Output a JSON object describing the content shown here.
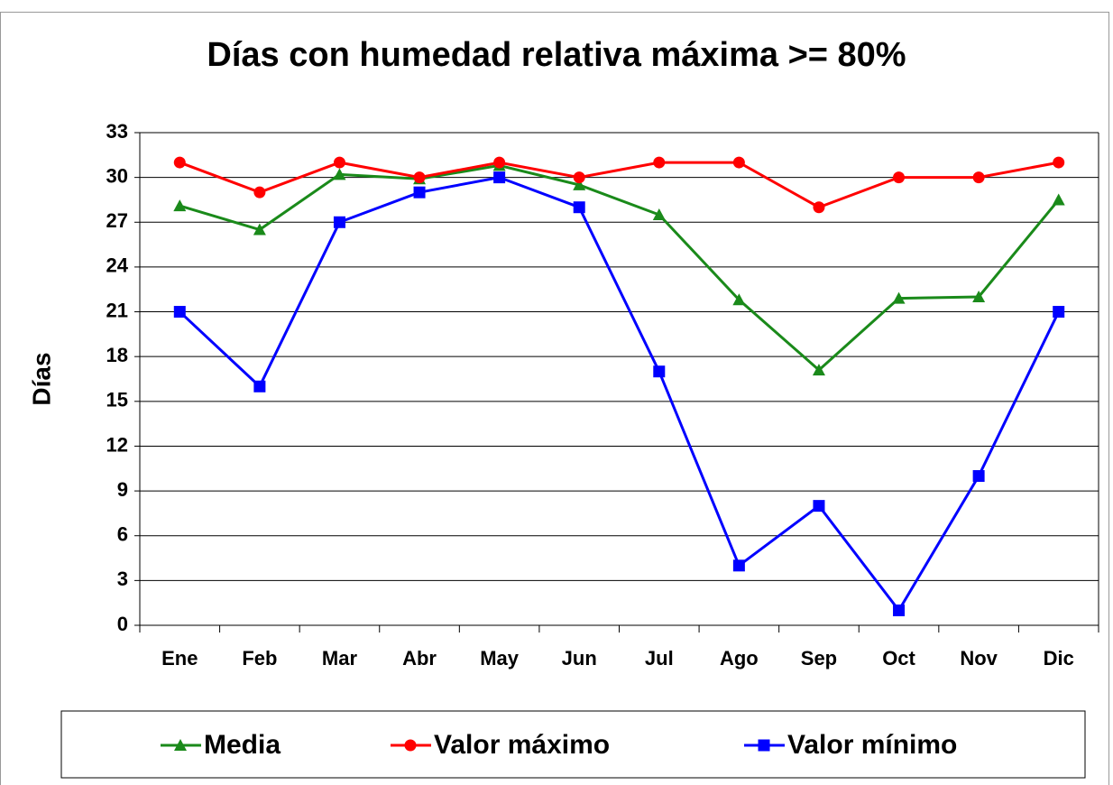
{
  "chart_data": {
    "type": "line",
    "title": "Días con humedad relativa máxima >= 80%",
    "y_label": "Días",
    "categories": [
      "Ene",
      "Feb",
      "Mar",
      "Abr",
      "May",
      "Jun",
      "Jul",
      "Ago",
      "Sep",
      "Oct",
      "Nov",
      "Dic"
    ],
    "series": [
      {
        "name": "Media",
        "color": "#1a8a1a",
        "marker": "triangle",
        "values": [
          28.1,
          26.5,
          30.2,
          29.9,
          30.8,
          29.5,
          27.5,
          21.8,
          17.1,
          21.9,
          22.0,
          28.5
        ]
      },
      {
        "name": "Valor máximo",
        "color": "#ff0000",
        "marker": "circle",
        "values": [
          31,
          29,
          31,
          30,
          31,
          30,
          31,
          31,
          28,
          30,
          30,
          31
        ]
      },
      {
        "name": "Valor mínimo",
        "color": "#0000ff",
        "marker": "square",
        "values": [
          21,
          16,
          27,
          29,
          30,
          28,
          17,
          4,
          8,
          1,
          10,
          21
        ]
      }
    ],
    "ylim": [
      0,
      33
    ],
    "yticks": [
      0,
      3,
      6,
      9,
      12,
      15,
      18,
      21,
      24,
      27,
      30,
      33
    ],
    "grid": true,
    "legend": "bottom"
  }
}
